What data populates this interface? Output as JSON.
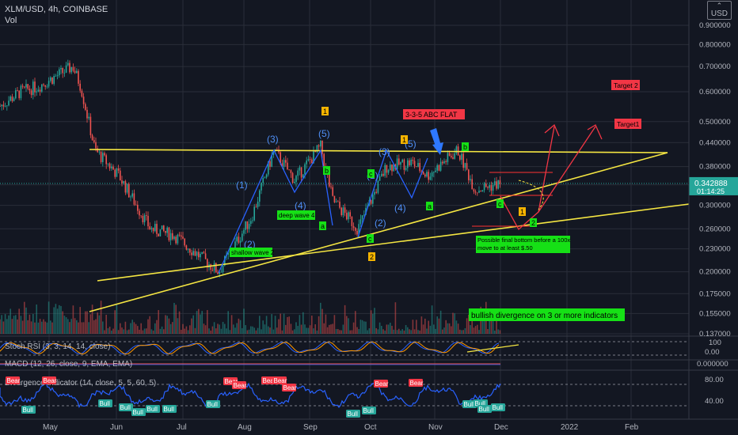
{
  "header": {
    "symbol": "XLM/USD, 4h, COINBASE",
    "vol": "Vol",
    "currency_box": "USD"
  },
  "colors": {
    "bg": "#131722",
    "up": "#26a69a",
    "down": "#ef5350",
    "yellow": "#f5e642",
    "blue": "#2962ff",
    "red": "#f23645",
    "green": "#16e016",
    "grid": "#2a2e39"
  },
  "price_axis": {
    "ticks": [
      "0.900000",
      "0.800000",
      "0.700000",
      "0.600000",
      "0.500000",
      "0.440000",
      "0.380000",
      "0.340000",
      "0.300000",
      "0.260000",
      "0.230000",
      "0.200000",
      "0.175000",
      "0.155000",
      "0.137000"
    ],
    "last_price": "0.342888",
    "countdown": "01:14:25"
  },
  "indicator_axis": {
    "stoch_ticks": [
      "100",
      "0.00"
    ],
    "macd_ticks": [
      "0.000000"
    ],
    "div_ticks": [
      "80.00",
      "40.00"
    ]
  },
  "time_axis": [
    "May",
    "Jun",
    "Jul",
    "Aug",
    "Sep",
    "Oct",
    "Nov",
    "Dec",
    "2022",
    "Feb"
  ],
  "indicator_labels": {
    "stoch": "Stoch RSI (3, 3, 14, 14, close)",
    "macd": "MACD (12, 26, close, 9, EMA, EMA)",
    "div": "Divergence Indicator (14, close, 5, 5, 60, 5)"
  },
  "annotations": {
    "wave_1": "(1)",
    "wave_2": "(2)",
    "wave_3": "(3)",
    "wave_4": "(4)",
    "wave_5": "(5)",
    "box_1": "1",
    "box_2": "2",
    "box_a": "a",
    "box_b": "b",
    "box_c": "c",
    "abc_flat": "3-3-5 ABC FLAT",
    "shallow": "shallow wave 2",
    "deep": "deep wave 4",
    "final_bottom_1": "Possible final bottom before a 100x",
    "final_bottom_2": "move to at least $.50",
    "bullish_div": "bullish divergence on 3 or more indicators",
    "target1": "Target1",
    "target2": "Target 2"
  },
  "div_labels": {
    "bull": "Bull",
    "bear": "Bear"
  },
  "chart_data": {
    "type": "candlestick",
    "title": "XLM/USD, 4h, COINBASE",
    "approx_close_path": [
      {
        "x": "Apr 01",
        "y": 0.55
      },
      {
        "x": "Apr 15",
        "y": 0.6
      },
      {
        "x": "Apr 29",
        "y": 0.62
      },
      {
        "x": "May 12",
        "y": 0.7
      },
      {
        "x": "May 17",
        "y": 0.62
      },
      {
        "x": "May 24",
        "y": 0.42
      },
      {
        "x": "Jun 07",
        "y": 0.36
      },
      {
        "x": "Jun 21",
        "y": 0.26
      },
      {
        "x": "Jul 06",
        "y": 0.25
      },
      {
        "x": "Jul 20",
        "y": 0.2
      },
      {
        "x": "Aug 03",
        "y": 0.28
      },
      {
        "x": "Aug 16",
        "y": 0.42
      },
      {
        "x": "Aug 25",
        "y": 0.35
      },
      {
        "x": "Sep 06",
        "y": 0.43
      },
      {
        "x": "Sep 15",
        "y": 0.31
      },
      {
        "x": "Sep 28",
        "y": 0.26
      },
      {
        "x": "Oct 10",
        "y": 0.38
      },
      {
        "x": "Oct 24",
        "y": 0.39
      },
      {
        "x": "Nov 01",
        "y": 0.36
      },
      {
        "x": "Nov 10",
        "y": 0.42
      },
      {
        "x": "Nov 22",
        "y": 0.33
      },
      {
        "x": "Nov 30",
        "y": 0.343
      }
    ],
    "last_price": 0.342888
  }
}
